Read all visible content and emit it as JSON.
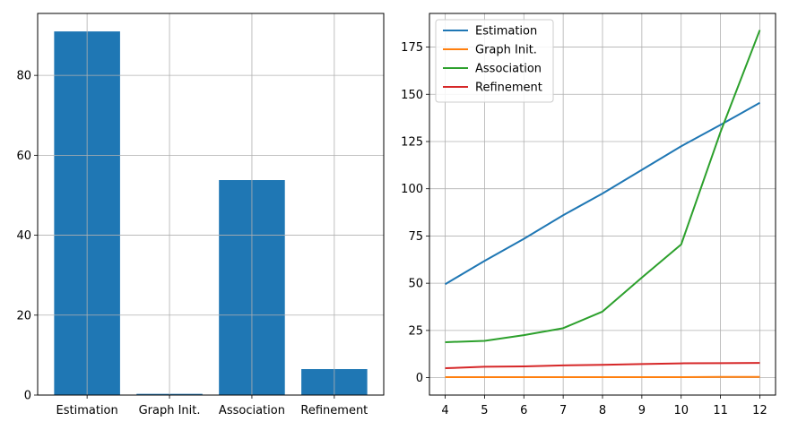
{
  "chart_data": [
    {
      "type": "bar",
      "categories": [
        "Estimation",
        "Graph Init.",
        "Association",
        "Refinement"
      ],
      "values": [
        91.0,
        0.3,
        53.8,
        6.5
      ],
      "ylim": [
        0,
        95.5
      ],
      "yticks": [
        0,
        20,
        40,
        60,
        80
      ],
      "grid": true,
      "color": "#1f77b4"
    },
    {
      "type": "line",
      "x": [
        4,
        5,
        6,
        7,
        8,
        9,
        10,
        11,
        12
      ],
      "xticks": [
        4,
        5,
        6,
        7,
        8,
        9,
        10,
        11,
        12
      ],
      "yticks": [
        0,
        25,
        50,
        75,
        100,
        125,
        150,
        175
      ],
      "xlim": [
        3.6,
        12.4
      ],
      "ylim": [
        -9.2,
        192.8
      ],
      "grid": true,
      "legend": "top-left",
      "series": [
        {
          "name": "Estimation",
          "color": "#1f77b4",
          "values": [
            49.5,
            61.8,
            73.5,
            86.0,
            97.5,
            110.0,
            122.5,
            133.8,
            145.5
          ]
        },
        {
          "name": "Graph Init.",
          "color": "#ff7f0e",
          "values": [
            0.3,
            0.3,
            0.3,
            0.3,
            0.3,
            0.3,
            0.3,
            0.4,
            0.4
          ]
        },
        {
          "name": "Association",
          "color": "#2ca02c",
          "values": [
            18.8,
            19.5,
            22.5,
            26.2,
            35.0,
            53.0,
            70.5,
            130.0,
            184.0
          ]
        },
        {
          "name": "Refinement",
          "color": "#d62728",
          "values": [
            5.0,
            5.8,
            6.0,
            6.5,
            6.8,
            7.2,
            7.6,
            7.7,
            7.8
          ]
        }
      ]
    }
  ]
}
